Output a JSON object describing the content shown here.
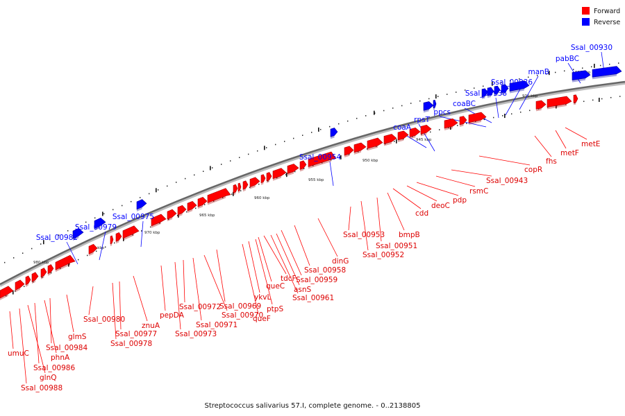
{
  "caption": "Streptococcus salivarius 57.I, complete genome. - 0..2138805",
  "legend": [
    {
      "label": "Forward",
      "color": "#ff0000"
    },
    {
      "label": "Reverse",
      "color": "#0000ff"
    }
  ],
  "colors": {
    "forward": "#ff0000",
    "forward_dark": "#aa0000",
    "reverse": "#0000ff",
    "reverse_dark": "#0000a0",
    "backbone": "#666666"
  },
  "kbp_labels": [
    "930 kbp",
    "935 kbp",
    "940 kbp",
    "945 kbp",
    "950 kbp",
    "955 kbp",
    "960 kbp",
    "965 kbp",
    "970 kbp",
    "975 kbp",
    "980 kbp"
  ],
  "reverse_genes": [
    "Ssal_00930",
    "pabBC",
    "manB",
    "Ssal_00936",
    "Ssal_00938",
    "coaBC",
    "ppcs",
    "rpsT",
    "coaA",
    "Ssal_00954",
    "Ssal_00975",
    "Ssal_00979",
    "Ssal_00982"
  ],
  "forward_genes": [
    "metE",
    "metF",
    "fhs",
    "copR",
    "Ssal_00943",
    "rsmC",
    "pdp",
    "deoC",
    "cdd",
    "bmpB",
    "Ssal_00951",
    "Ssal_00952",
    "Ssal_00953",
    "dinG",
    "Ssal_00958",
    "Ssal_00959",
    "asnS",
    "Ssal_00961",
    "tdcF",
    "queC",
    "ptpS",
    "ykvL",
    "queF",
    "Ssal_00969",
    "Ssal_00970",
    "Ssal_00971",
    "Ssal_00972",
    "Ssal_00973",
    "pepDA",
    "znuA",
    "Ssal_00977",
    "Ssal_00978",
    "Ssal_00980",
    "glmS",
    "Ssal_00984",
    "phnA",
    "Ssal_00986",
    "glnQ",
    "Ssal_00988",
    "umuC"
  ]
}
